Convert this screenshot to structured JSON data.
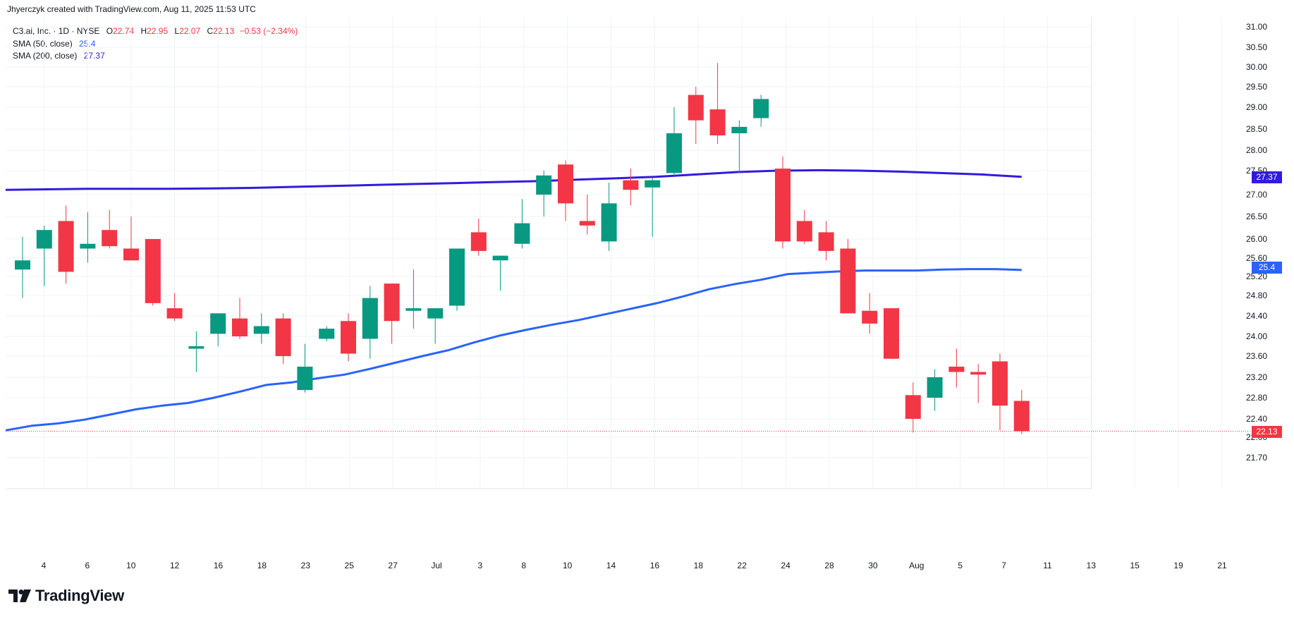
{
  "header": {
    "attribution": "Jhyerczyk created with TradingView.com, Aug 11, 2025 11:53 UTC"
  },
  "legend": {
    "symbol": "C3.ai, Inc. · 1D · NYSE",
    "open_label": "O",
    "open": "22.74",
    "high_label": "H",
    "high": "22.95",
    "low_label": "L",
    "low": "22.07",
    "close_label": "C",
    "close": "22.13",
    "change": "−0.53 (−2.34%)",
    "sma50_label": "SMA (50, close)",
    "sma50_value": "25.4",
    "sma200_label": "SMA (200, close)",
    "sma200_value": "27.37"
  },
  "price_labels": {
    "current": "22.13",
    "sma200": "27.37",
    "sma50": "25.4"
  },
  "brand": {
    "name": "TradingView"
  },
  "colors": {
    "up": "#089981",
    "down": "#f23645",
    "sma50": "#2962ff",
    "sma200": "#311bdd",
    "grid": "#f0f3fa",
    "axis_text": "#131722"
  },
  "chart_data": {
    "type": "candlestick",
    "y_ticks": [
      "31.00",
      "30.50",
      "30.00",
      "29.50",
      "29.00",
      "28.50",
      "28.00",
      "27.50",
      "27.00",
      "26.50",
      "26.00",
      "25.60",
      "25.20",
      "24.80",
      "24.40",
      "24.00",
      "23.60",
      "23.20",
      "22.80",
      "22.40",
      "22.00",
      "21.70"
    ],
    "x_ticks": [
      "4",
      "6",
      "10",
      "12",
      "16",
      "18",
      "23",
      "25",
      "27",
      "Jul",
      "3",
      "8",
      "10",
      "14",
      "16",
      "18",
      "22",
      "24",
      "28",
      "30",
      "Aug",
      "5",
      "7",
      "11",
      "13",
      "15",
      "19",
      "21"
    ],
    "candles": [
      {
        "o": 25.35,
        "h": 26.05,
        "l": 24.75,
        "c": 25.55
      },
      {
        "o": 25.8,
        "h": 26.3,
        "l": 25.0,
        "c": 26.2
      },
      {
        "o": 26.4,
        "h": 26.75,
        "l": 25.05,
        "c": 25.3
      },
      {
        "o": 25.8,
        "h": 26.6,
        "l": 25.5,
        "c": 25.9
      },
      {
        "o": 26.2,
        "h": 26.65,
        "l": 25.8,
        "c": 25.85
      },
      {
        "o": 25.8,
        "h": 26.5,
        "l": 25.55,
        "c": 25.55
      },
      {
        "o": 26.0,
        "h": 26.0,
        "l": 24.6,
        "c": 24.65
      },
      {
        "o": 24.55,
        "h": 24.85,
        "l": 24.3,
        "c": 24.35
      },
      {
        "o": 23.75,
        "h": 24.1,
        "l": 23.3,
        "c": 23.8
      },
      {
        "o": 24.05,
        "h": 24.45,
        "l": 23.8,
        "c": 24.45
      },
      {
        "o": 24.35,
        "h": 24.75,
        "l": 23.95,
        "c": 24.0
      },
      {
        "o": 24.05,
        "h": 24.45,
        "l": 23.85,
        "c": 24.2
      },
      {
        "o": 24.35,
        "h": 24.45,
        "l": 23.45,
        "c": 23.6
      },
      {
        "o": 22.95,
        "h": 23.85,
        "l": 22.9,
        "c": 23.4
      },
      {
        "o": 23.95,
        "h": 24.2,
        "l": 23.9,
        "c": 24.15
      },
      {
        "o": 24.3,
        "h": 24.45,
        "l": 23.5,
        "c": 23.65
      },
      {
        "o": 23.95,
        "h": 25.0,
        "l": 23.55,
        "c": 24.75
      },
      {
        "o": 25.05,
        "h": 25.05,
        "l": 23.85,
        "c": 24.3
      },
      {
        "o": 24.5,
        "h": 25.35,
        "l": 24.15,
        "c": 24.55
      },
      {
        "o": 24.35,
        "h": 24.55,
        "l": 23.85,
        "c": 24.55
      },
      {
        "o": 24.6,
        "h": 25.8,
        "l": 24.5,
        "c": 25.8
      },
      {
        "o": 26.15,
        "h": 26.45,
        "l": 25.65,
        "c": 25.75
      },
      {
        "o": 25.55,
        "h": 25.65,
        "l": 24.9,
        "c": 25.65
      },
      {
        "o": 25.9,
        "h": 26.9,
        "l": 25.8,
        "c": 26.35
      },
      {
        "o": 27.0,
        "h": 27.5,
        "l": 26.5,
        "c": 27.4
      },
      {
        "o": 27.65,
        "h": 27.75,
        "l": 26.4,
        "c": 26.8
      },
      {
        "o": 26.4,
        "h": 27.0,
        "l": 26.1,
        "c": 26.3
      },
      {
        "o": 25.95,
        "h": 27.25,
        "l": 25.75,
        "c": 26.8
      },
      {
        "o": 27.3,
        "h": 27.55,
        "l": 26.75,
        "c": 27.1
      },
      {
        "o": 27.15,
        "h": 27.35,
        "l": 26.05,
        "c": 27.3
      },
      {
        "o": 27.45,
        "h": 29.0,
        "l": 27.4,
        "c": 28.4
      },
      {
        "o": 29.3,
        "h": 29.5,
        "l": 28.15,
        "c": 28.7
      },
      {
        "o": 28.95,
        "h": 30.1,
        "l": 28.15,
        "c": 28.35
      },
      {
        "o": 28.4,
        "h": 28.7,
        "l": 27.45,
        "c": 28.55
      },
      {
        "o": 28.75,
        "h": 29.3,
        "l": 28.55,
        "c": 29.2
      },
      {
        "o": 27.55,
        "h": 27.85,
        "l": 25.8,
        "c": 25.95
      },
      {
        "o": 26.4,
        "h": 26.65,
        "l": 25.9,
        "c": 25.95
      },
      {
        "o": 26.15,
        "h": 26.4,
        "l": 25.55,
        "c": 25.75
      },
      {
        "o": 25.8,
        "h": 26.0,
        "l": 24.45,
        "c": 24.45
      },
      {
        "o": 24.5,
        "h": 24.85,
        "l": 24.05,
        "c": 24.25
      },
      {
        "o": 24.55,
        "h": 24.55,
        "l": 23.55,
        "c": 23.55
      },
      {
        "o": 22.85,
        "h": 23.1,
        "l": 22.1,
        "c": 22.4
      },
      {
        "o": 22.8,
        "h": 23.35,
        "l": 22.55,
        "c": 23.2
      },
      {
        "o": 23.4,
        "h": 23.75,
        "l": 23.0,
        "c": 23.3
      },
      {
        "o": 23.3,
        "h": 23.45,
        "l": 22.7,
        "c": 23.25
      },
      {
        "o": 23.5,
        "h": 23.65,
        "l": 22.15,
        "c": 22.65
      },
      {
        "o": 22.74,
        "h": 22.95,
        "l": 22.07,
        "c": 22.13
      }
    ],
    "sma50": [
      22.15,
      22.25,
      22.3,
      22.38,
      22.48,
      22.58,
      22.65,
      22.7,
      22.8,
      22.92,
      23.05,
      23.1,
      23.18,
      23.25,
      23.36,
      23.48,
      23.6,
      23.72,
      23.88,
      24.02,
      24.13,
      24.23,
      24.32,
      24.43,
      24.54,
      24.65,
      24.78,
      24.93,
      25.04,
      25.13,
      25.25,
      25.28,
      25.31,
      25.33,
      25.33,
      25.33,
      25.35,
      25.36,
      25.36,
      25.34
    ],
    "sma200": [
      27.1,
      27.11,
      27.12,
      27.12,
      27.12,
      27.13,
      27.14,
      27.16,
      27.18,
      27.2,
      27.22,
      27.24,
      27.26,
      27.28,
      27.31,
      27.34,
      27.37,
      27.42,
      27.47,
      27.5,
      27.51,
      27.5,
      27.48,
      27.45,
      27.42,
      27.37
    ],
    "ylim": [
      21.4,
      31.15
    ]
  }
}
